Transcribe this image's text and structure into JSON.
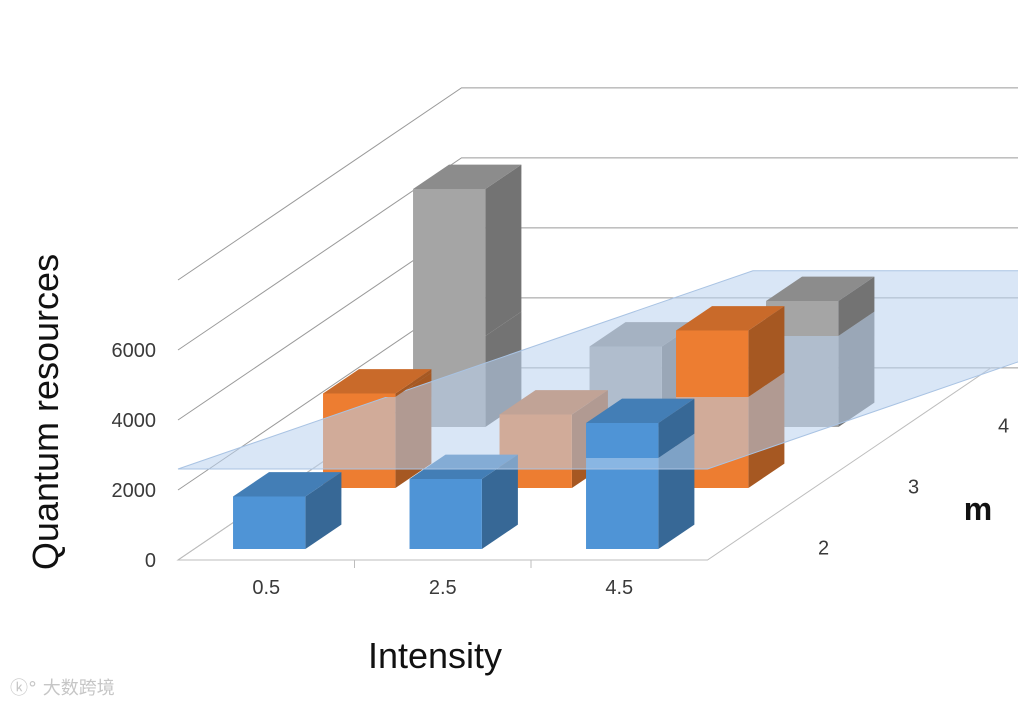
{
  "chart_data": {
    "type": "bar",
    "variant": "3d-bar-with-threshold-plane",
    "xlabel": "Intensity",
    "ylabel": "Quantum resources",
    "zlabel": "m",
    "categories": [
      "0.5",
      "2.5",
      "4.5"
    ],
    "depth_categories": [
      "2",
      "3",
      "4"
    ],
    "series": [
      {
        "name": "2",
        "color": "#4f94d6",
        "values": [
          1500,
          2000,
          3600
        ]
      },
      {
        "name": "3",
        "color": "#ed7d31",
        "values": [
          2700,
          2100,
          4500
        ]
      },
      {
        "name": "4",
        "color": "#a5a5a5",
        "values": [
          6800,
          2300,
          3600
        ]
      }
    ],
    "threshold_plane": {
      "value": 2600,
      "color": "#b9d2ee"
    },
    "yticks": [
      "0",
      "2000",
      "4000",
      "6000"
    ],
    "ylim": [
      0,
      8000
    ],
    "grid": true,
    "legend": "none"
  },
  "watermark": "大数跨境"
}
